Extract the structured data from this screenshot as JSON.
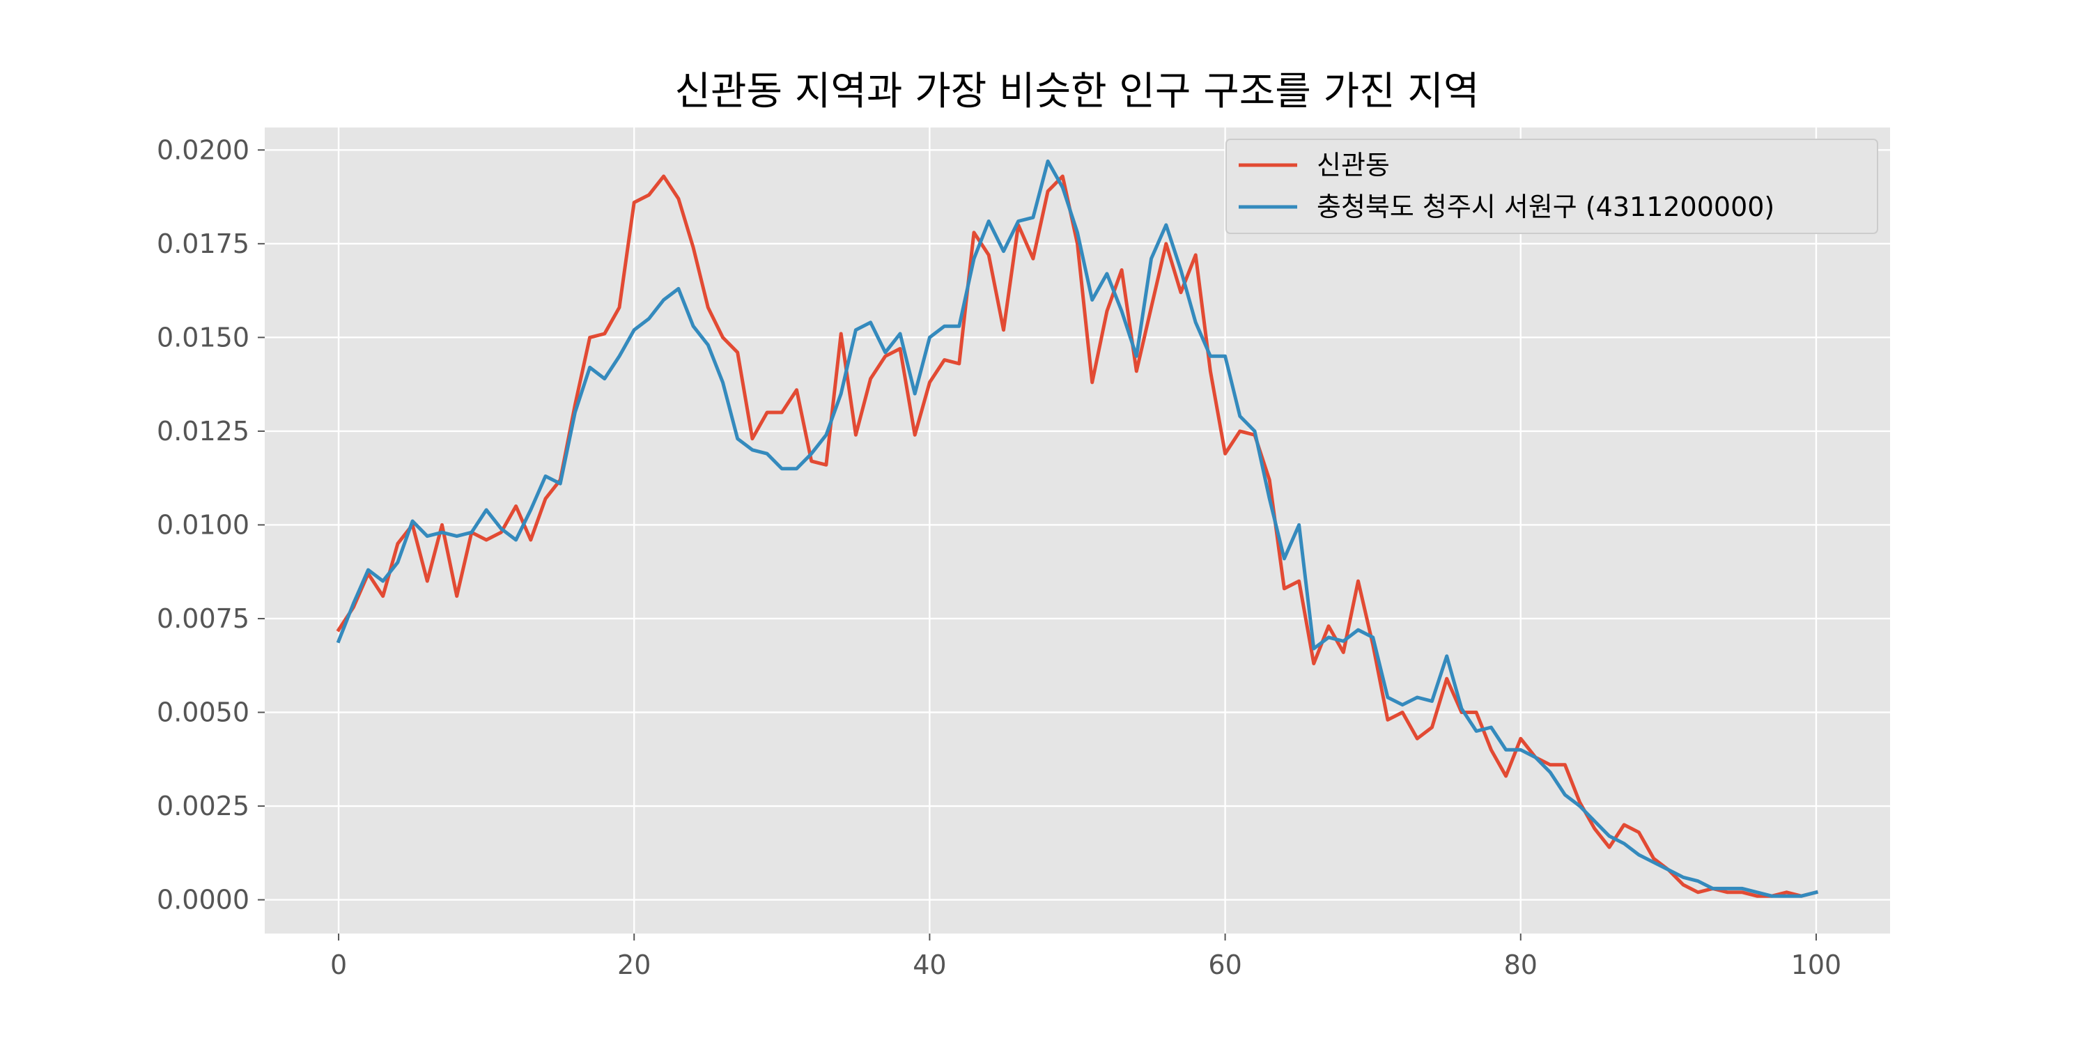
{
  "chart_data": {
    "type": "line",
    "title": "신관동 지역과 가장 비슷한 인구 구조를 가진 지역",
    "xlabel": "",
    "ylabel": "",
    "xlim": [
      -5,
      105
    ],
    "ylim": [
      -0.0009,
      0.0206
    ],
    "xticks": [
      0,
      20,
      40,
      60,
      80,
      100
    ],
    "xtick_labels": [
      "0",
      "20",
      "40",
      "60",
      "80",
      "100"
    ],
    "yticks": [
      0.0,
      0.0025,
      0.005,
      0.0075,
      0.01,
      0.0125,
      0.015,
      0.0175,
      0.02
    ],
    "ytick_labels": [
      "0.0000",
      "0.0025",
      "0.0050",
      "0.0075",
      "0.0100",
      "0.0125",
      "0.0150",
      "0.0175",
      "0.0200"
    ],
    "grid": true,
    "legend_position": "top-right",
    "x": [
      0,
      1,
      2,
      3,
      4,
      5,
      6,
      7,
      8,
      9,
      10,
      11,
      12,
      13,
      14,
      15,
      16,
      17,
      18,
      19,
      20,
      21,
      22,
      23,
      24,
      25,
      26,
      27,
      28,
      29,
      30,
      31,
      32,
      33,
      34,
      35,
      36,
      37,
      38,
      39,
      40,
      41,
      42,
      43,
      44,
      45,
      46,
      47,
      48,
      49,
      50,
      51,
      52,
      53,
      54,
      55,
      56,
      57,
      58,
      59,
      60,
      61,
      62,
      63,
      64,
      65,
      66,
      67,
      68,
      69,
      70,
      71,
      72,
      73,
      74,
      75,
      76,
      77,
      78,
      79,
      80,
      81,
      82,
      83,
      84,
      85,
      86,
      87,
      88,
      89,
      90,
      91,
      92,
      93,
      94,
      95,
      96,
      97,
      98,
      99,
      100
    ],
    "series": [
      {
        "name": "신관동",
        "color": "#E24A33",
        "values": [
          0.0072,
          0.0078,
          0.0087,
          0.0081,
          0.0095,
          0.01,
          0.0085,
          0.01,
          0.0081,
          0.0098,
          0.0096,
          0.0098,
          0.0105,
          0.0096,
          0.0107,
          0.0112,
          0.0132,
          0.015,
          0.0151,
          0.0158,
          0.0186,
          0.0188,
          0.0193,
          0.0187,
          0.0174,
          0.0158,
          0.015,
          0.0146,
          0.0123,
          0.013,
          0.013,
          0.0136,
          0.0117,
          0.0116,
          0.0151,
          0.0124,
          0.0139,
          0.0145,
          0.0147,
          0.0124,
          0.0138,
          0.0144,
          0.0143,
          0.0178,
          0.0172,
          0.0152,
          0.018,
          0.0171,
          0.0189,
          0.0193,
          0.0175,
          0.0138,
          0.0157,
          0.0168,
          0.0141,
          0.0158,
          0.0175,
          0.0162,
          0.0172,
          0.0141,
          0.0119,
          0.0125,
          0.0124,
          0.0112,
          0.0083,
          0.0085,
          0.0063,
          0.0073,
          0.0066,
          0.0085,
          0.0068,
          0.0048,
          0.005,
          0.0043,
          0.0046,
          0.0059,
          0.005,
          0.005,
          0.004,
          0.0033,
          0.0043,
          0.0038,
          0.0036,
          0.0036,
          0.0026,
          0.0019,
          0.0014,
          0.002,
          0.0018,
          0.0011,
          0.0008,
          0.0004,
          0.0002,
          0.0003,
          0.0002,
          0.0002,
          0.0001,
          0.0001,
          0.0002,
          0.0001,
          0.0002
        ]
      },
      {
        "name": "충청북도 청주시 서원구 (4311200000)",
        "color": "#348ABD",
        "values": [
          0.0069,
          0.0079,
          0.0088,
          0.0085,
          0.009,
          0.0101,
          0.0097,
          0.0098,
          0.0097,
          0.0098,
          0.0104,
          0.0099,
          0.0096,
          0.0104,
          0.0113,
          0.0111,
          0.013,
          0.0142,
          0.0139,
          0.0145,
          0.0152,
          0.0155,
          0.016,
          0.0163,
          0.0153,
          0.0148,
          0.0138,
          0.0123,
          0.012,
          0.0119,
          0.0115,
          0.0115,
          0.0119,
          0.0124,
          0.0135,
          0.0152,
          0.0154,
          0.0146,
          0.0151,
          0.0135,
          0.015,
          0.0153,
          0.0153,
          0.0171,
          0.0181,
          0.0173,
          0.0181,
          0.0182,
          0.0197,
          0.019,
          0.0178,
          0.016,
          0.0167,
          0.0157,
          0.0145,
          0.0171,
          0.018,
          0.0168,
          0.0154,
          0.0145,
          0.0145,
          0.0129,
          0.0125,
          0.0107,
          0.0091,
          0.01,
          0.0067,
          0.007,
          0.0069,
          0.0072,
          0.007,
          0.0054,
          0.0052,
          0.0054,
          0.0053,
          0.0065,
          0.0051,
          0.0045,
          0.0046,
          0.004,
          0.004,
          0.0038,
          0.0034,
          0.0028,
          0.0025,
          0.0021,
          0.0017,
          0.0015,
          0.0012,
          0.001,
          0.0008,
          0.0006,
          0.0005,
          0.0003,
          0.0003,
          0.0003,
          0.0002,
          0.0001,
          0.0001,
          0.0001,
          0.0002
        ]
      }
    ]
  }
}
